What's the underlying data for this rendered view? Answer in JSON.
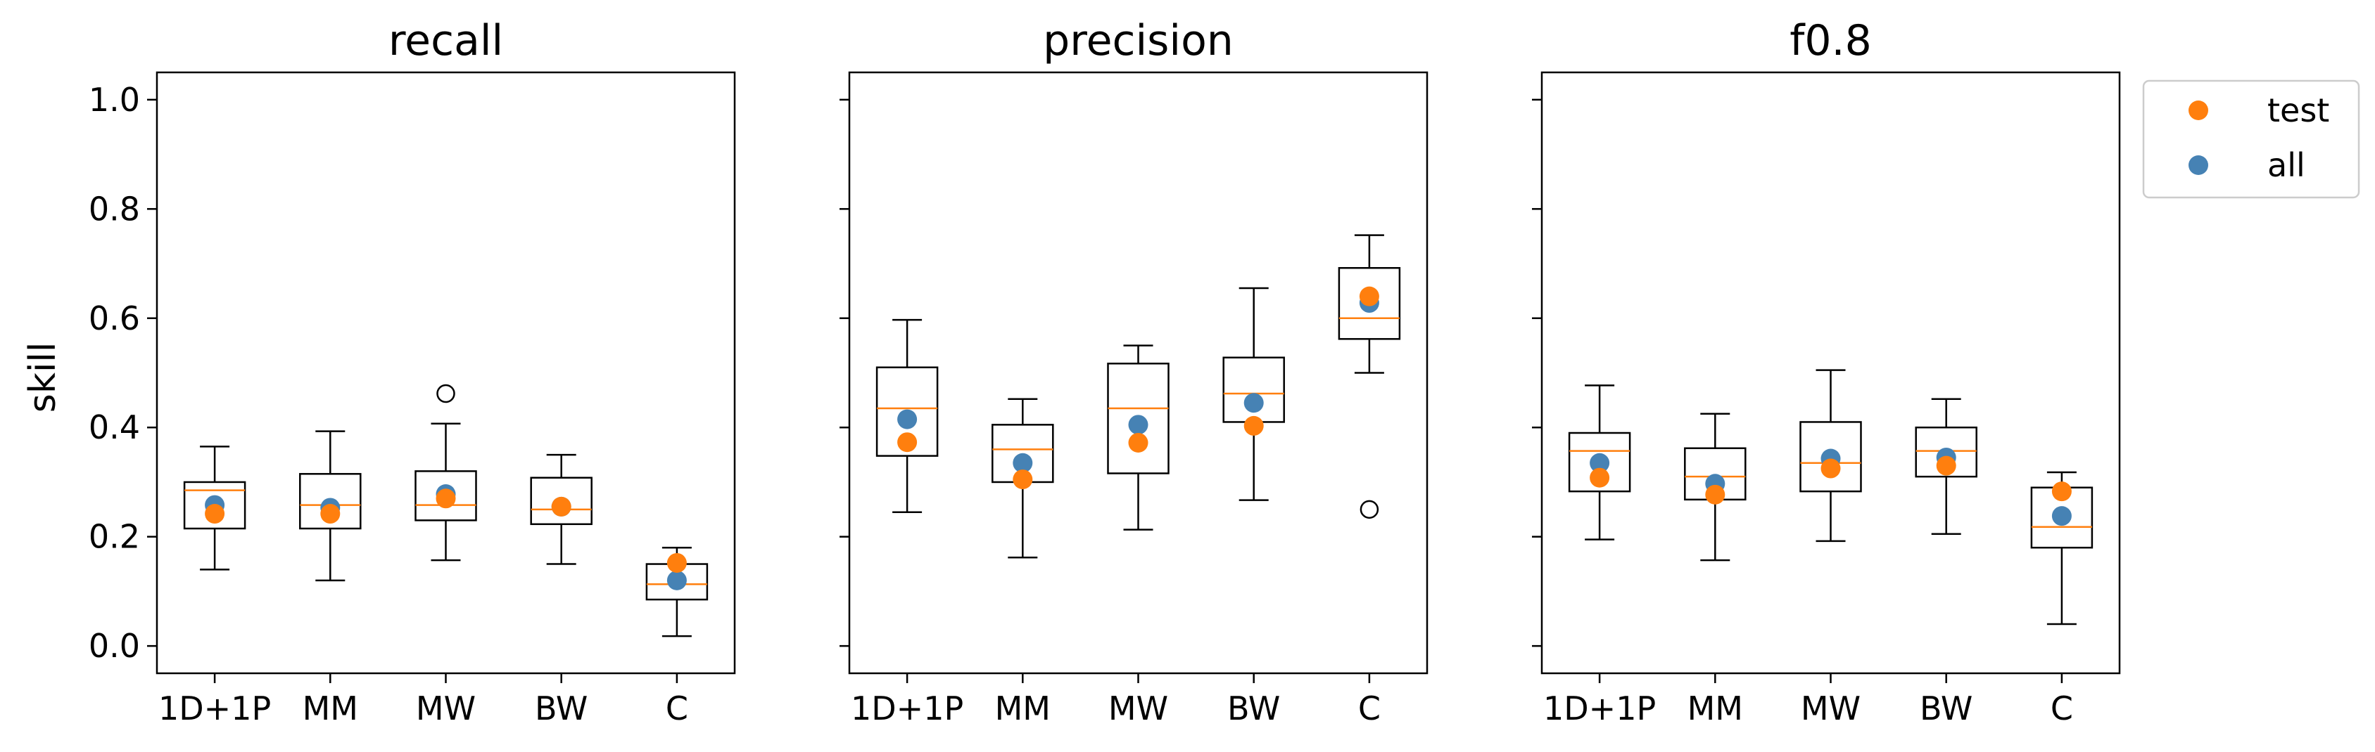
{
  "figure": {
    "ylabel": "skill",
    "legend_position": "upper-right-outside",
    "legend": [
      {
        "label": "test",
        "color": "#ff7f0e"
      },
      {
        "label": "all",
        "color": "#4682b4"
      }
    ],
    "colors": {
      "box": "#000000",
      "median": "#ff7f0e",
      "test": "#ff7f0e",
      "all": "#4682b4"
    }
  },
  "chart_data": [
    {
      "type": "box",
      "title": "recall",
      "categories": [
        "1D+1P",
        "MM",
        "MW",
        "BW",
        "C"
      ],
      "ylim": [
        -0.05,
        1.05
      ],
      "yticks": [
        "0.0",
        "0.2",
        "0.4",
        "0.6",
        "0.8",
        "1.0"
      ],
      "boxes": [
        {
          "whislo": 0.14,
          "q1": 0.215,
          "med": 0.285,
          "q3": 0.3,
          "whishi": 0.365,
          "fliers": []
        },
        {
          "whislo": 0.12,
          "q1": 0.215,
          "med": 0.258,
          "q3": 0.315,
          "whishi": 0.393,
          "fliers": []
        },
        {
          "whislo": 0.157,
          "q1": 0.23,
          "med": 0.258,
          "q3": 0.32,
          "whishi": 0.407,
          "fliers": [
            0.462
          ]
        },
        {
          "whislo": 0.15,
          "q1": 0.223,
          "med": 0.25,
          "q3": 0.308,
          "whishi": 0.35,
          "fliers": []
        },
        {
          "whislo": 0.018,
          "q1": 0.085,
          "med": 0.113,
          "q3": 0.15,
          "whishi": 0.18,
          "fliers": []
        }
      ],
      "series": [
        {
          "name": "all",
          "values": [
            0.258,
            0.253,
            0.278,
            0.255,
            0.12
          ]
        },
        {
          "name": "test",
          "values": [
            0.242,
            0.242,
            0.27,
            0.255,
            0.152
          ]
        }
      ]
    },
    {
      "type": "box",
      "title": "precision",
      "categories": [
        "1D+1P",
        "MM",
        "MW",
        "BW",
        "C"
      ],
      "ylim": [
        -0.05,
        1.05
      ],
      "yticks": [
        "0.0",
        "0.2",
        "0.4",
        "0.6",
        "0.8",
        "1.0"
      ],
      "boxes": [
        {
          "whislo": 0.245,
          "q1": 0.348,
          "med": 0.435,
          "q3": 0.51,
          "whishi": 0.597,
          "fliers": []
        },
        {
          "whislo": 0.162,
          "q1": 0.3,
          "med": 0.36,
          "q3": 0.405,
          "whishi": 0.452,
          "fliers": []
        },
        {
          "whislo": 0.213,
          "q1": 0.316,
          "med": 0.435,
          "q3": 0.517,
          "whishi": 0.55,
          "fliers": []
        },
        {
          "whislo": 0.267,
          "q1": 0.41,
          "med": 0.462,
          "q3": 0.528,
          "whishi": 0.655,
          "fliers": []
        },
        {
          "whislo": 0.5,
          "q1": 0.562,
          "med": 0.6,
          "q3": 0.692,
          "whishi": 0.752,
          "fliers": [
            0.25
          ]
        }
      ],
      "series": [
        {
          "name": "all",
          "values": [
            0.415,
            0.335,
            0.405,
            0.445,
            0.628
          ]
        },
        {
          "name": "test",
          "values": [
            0.373,
            0.305,
            0.372,
            0.403,
            0.64
          ]
        }
      ]
    },
    {
      "type": "box",
      "title": "f0.8",
      "categories": [
        "1D+1P",
        "MM",
        "MW",
        "BW",
        "C"
      ],
      "ylim": [
        -0.05,
        1.05
      ],
      "yticks": [
        "0.0",
        "0.2",
        "0.4",
        "0.6",
        "0.8",
        "1.0"
      ],
      "boxes": [
        {
          "whislo": 0.195,
          "q1": 0.283,
          "med": 0.357,
          "q3": 0.39,
          "whishi": 0.477,
          "fliers": []
        },
        {
          "whislo": 0.157,
          "q1": 0.268,
          "med": 0.31,
          "q3": 0.362,
          "whishi": 0.425,
          "fliers": []
        },
        {
          "whislo": 0.192,
          "q1": 0.283,
          "med": 0.335,
          "q3": 0.41,
          "whishi": 0.505,
          "fliers": []
        },
        {
          "whislo": 0.205,
          "q1": 0.31,
          "med": 0.357,
          "q3": 0.4,
          "whishi": 0.452,
          "fliers": []
        },
        {
          "whislo": 0.04,
          "q1": 0.18,
          "med": 0.218,
          "q3": 0.29,
          "whishi": 0.318,
          "fliers": []
        }
      ],
      "series": [
        {
          "name": "all",
          "values": [
            0.335,
            0.297,
            0.343,
            0.345,
            0.238
          ]
        },
        {
          "name": "test",
          "values": [
            0.308,
            0.277,
            0.325,
            0.33,
            0.283
          ]
        }
      ]
    }
  ]
}
